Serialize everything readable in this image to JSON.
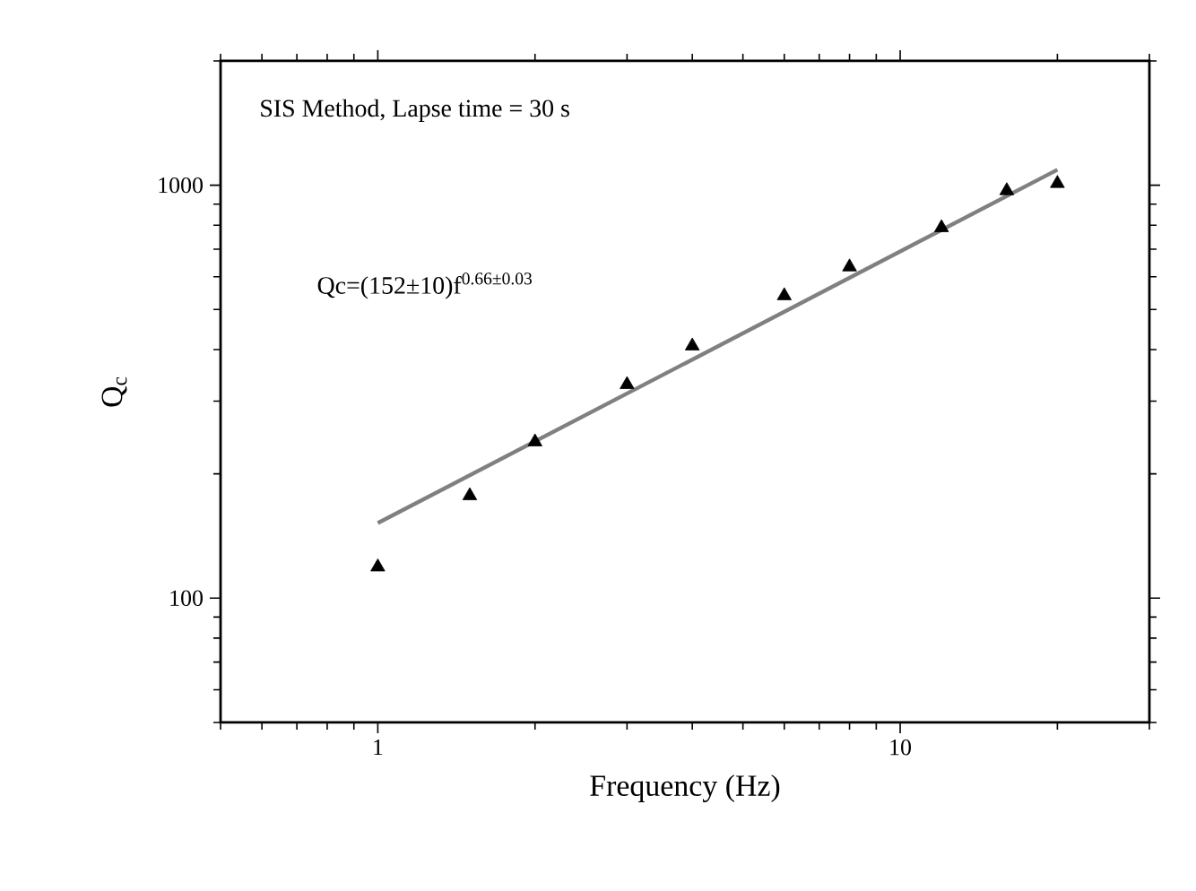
{
  "chart_data": {
    "type": "scatter",
    "xlabel": "Frequency (Hz)",
    "ylabel": "Q$_{c}$",
    "annotations": [
      "SIS Method, Lapse time = 30 s",
      "Qc=(152±10)f$^{0.66±0.03}$"
    ],
    "log": "xy",
    "marker": "triangle",
    "xlim": [
      0.5,
      30
    ],
    "ylim": [
      50,
      2000
    ],
    "xticks": [
      1,
      10
    ],
    "yticks": [
      100,
      1000
    ],
    "series": [
      {
        "color": "#000000",
        "x": [
          1,
          1.5,
          2,
          3,
          4,
          6,
          8,
          12,
          16,
          20
        ],
        "values": [
          119,
          177,
          239,
          329,
          408,
          540,
          634,
          789,
          970,
          1010
        ]
      },
      {
        "type": "line",
        "color": "#808080",
        "marker": "none",
        "line_style": "solid",
        "x": [
          1,
          20
        ],
        "values": [
          152,
          1090
        ]
      }
    ]
  }
}
